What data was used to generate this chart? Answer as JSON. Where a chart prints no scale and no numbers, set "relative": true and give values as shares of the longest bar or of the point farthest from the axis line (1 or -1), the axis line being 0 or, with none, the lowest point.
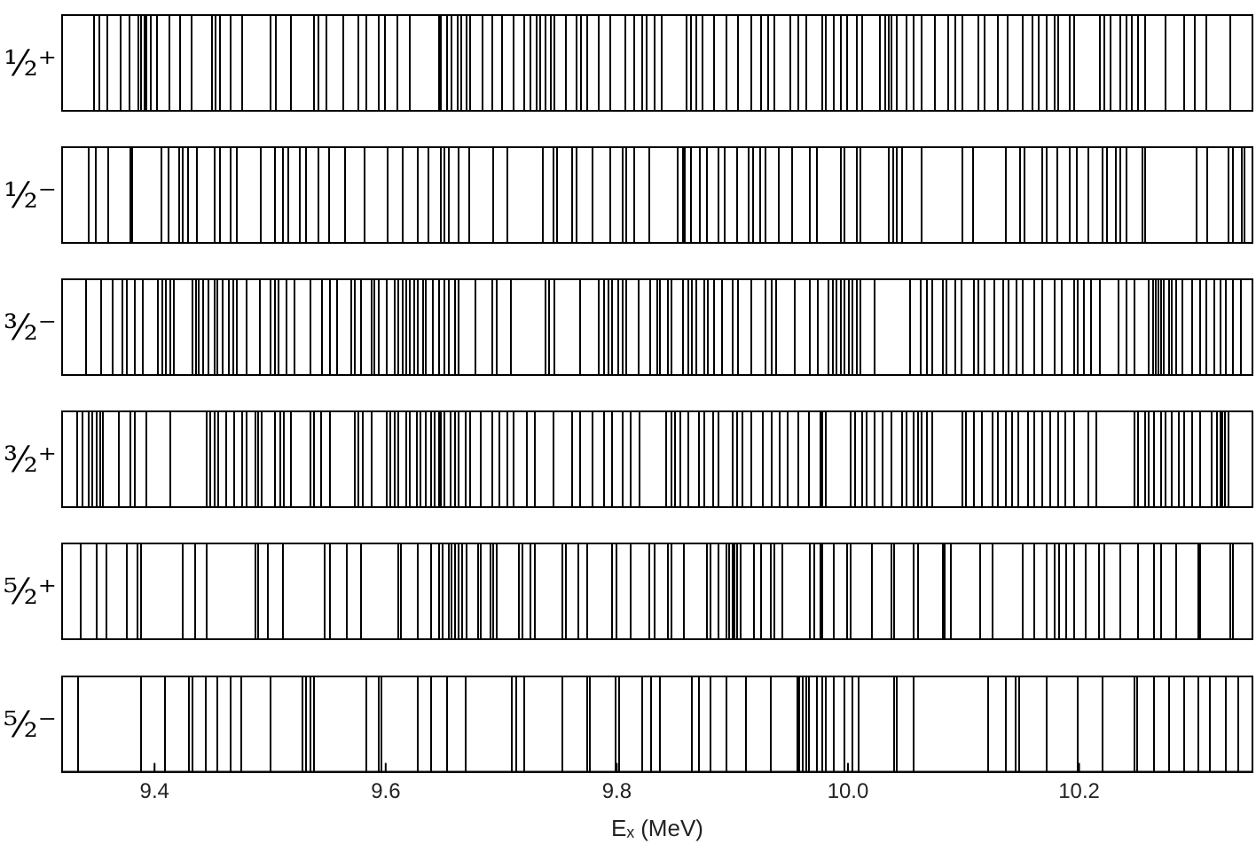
{
  "chart_data": [
    {
      "type": "bar",
      "ylabel": "¹⁄₂⁺",
      "color": "#000000",
      "relative": true,
      "xlim": [
        9.32,
        10.35
      ],
      "tick_labels": false,
      "x": [
        9.348,
        9.352,
        9.359,
        9.371,
        9.378,
        9.386,
        9.388,
        9.391,
        9.393,
        9.397,
        9.402,
        9.413,
        9.422,
        9.432,
        9.45,
        9.453,
        9.457,
        9.466,
        9.476,
        9.5,
        9.505,
        9.518,
        9.538,
        9.542,
        9.549,
        9.563,
        9.576,
        9.583,
        9.594,
        9.599,
        9.61,
        9.621,
        9.646,
        9.648,
        9.653,
        9.657,
        9.662,
        9.665,
        9.67,
        9.673,
        9.684,
        9.692,
        9.701,
        9.711,
        9.72,
        9.725,
        9.731,
        9.734,
        9.738,
        9.743,
        9.746,
        9.756,
        9.765,
        9.769,
        9.774,
        9.784,
        9.794,
        9.807,
        9.815,
        9.822,
        9.826,
        9.833,
        9.839,
        9.86,
        9.864,
        9.869,
        9.874,
        9.884,
        9.895,
        9.905,
        9.916,
        9.925,
        9.931,
        9.936,
        9.95,
        9.957,
        9.964,
        9.978,
        9.981,
        9.988,
        9.994,
        9.999,
        10.008,
        10.012,
        10.028,
        10.032,
        10.035,
        10.038,
        10.042,
        10.051,
        10.057,
        10.064,
        10.075,
        10.087,
        10.093,
        10.099,
        10.113,
        10.118,
        10.13,
        10.138,
        10.151,
        10.16,
        10.165,
        10.172,
        10.179,
        10.182,
        10.192,
        10.196,
        10.218,
        10.222,
        10.227,
        10.236,
        10.241,
        10.246,
        10.251,
        10.257,
        10.275,
        10.291,
        10.3,
        10.31,
        10.331
      ],
      "values": [
        1,
        1,
        1,
        1,
        1,
        1,
        1,
        1,
        1,
        1,
        1,
        1,
        1,
        1,
        1,
        1,
        1,
        1,
        1,
        1,
        1,
        1,
        1,
        1,
        1,
        1,
        1,
        1,
        1,
        1,
        1,
        1,
        1,
        1,
        1,
        1,
        1,
        1,
        1,
        1,
        1,
        1,
        1,
        1,
        1,
        1,
        1,
        1,
        1,
        1,
        1,
        1,
        1,
        1,
        1,
        1,
        1,
        1,
        1,
        1,
        1,
        1,
        1,
        1,
        1,
        1,
        1,
        1,
        1,
        1,
        1,
        1,
        1,
        1,
        1,
        1,
        1,
        1,
        1,
        1,
        1,
        1,
        1,
        1,
        1,
        1,
        1,
        1,
        1,
        1,
        1,
        1,
        1,
        1,
        1,
        1,
        1,
        1,
        1,
        1,
        1,
        1,
        1,
        1,
        1,
        1,
        1,
        1,
        1,
        1,
        1,
        1,
        1,
        1,
        1,
        1,
        1,
        1,
        1,
        1,
        1
      ]
    },
    {
      "type": "bar",
      "ylabel": "¹⁄₂⁻",
      "color": "#000000",
      "relative": true,
      "xlim": [
        9.32,
        10.35
      ],
      "tick_labels": false,
      "x": [
        9.343,
        9.349,
        9.36,
        9.379,
        9.381,
        9.406,
        9.412,
        9.421,
        9.424,
        9.429,
        9.437,
        9.452,
        9.457,
        9.466,
        9.471,
        9.492,
        9.504,
        9.511,
        9.516,
        9.526,
        9.531,
        9.542,
        9.551,
        9.565,
        9.582,
        9.602,
        9.615,
        9.628,
        9.637,
        9.648,
        9.651,
        9.655,
        9.663,
        9.672,
        9.693,
        9.705,
        9.736,
        9.745,
        9.748,
        9.761,
        9.765,
        9.779,
        9.794,
        9.805,
        9.808,
        9.815,
        9.828,
        9.853,
        9.857,
        9.859,
        9.864,
        9.872,
        9.878,
        9.888,
        9.893,
        9.904,
        9.914,
        9.918,
        9.924,
        9.929,
        9.94,
        9.952,
        9.967,
        9.973,
        9.994,
        9.997,
        10.008,
        10.011,
        10.035,
        10.039,
        10.042,
        10.047,
        10.064,
        10.099,
        10.108,
        10.137,
        10.149,
        10.153,
        10.168,
        10.172,
        10.181,
        10.192,
        10.198,
        10.208,
        10.22,
        10.224,
        10.232,
        10.236,
        10.241,
        10.255,
        10.257,
        10.302,
        10.311,
        10.329,
        10.333,
        10.341,
        10.343
      ],
      "values": [
        1,
        1,
        1,
        1,
        1,
        1,
        1,
        1,
        1,
        1,
        1,
        1,
        1,
        1,
        1,
        1,
        1,
        1,
        1,
        1,
        1,
        1,
        1,
        1,
        1,
        1,
        1,
        1,
        1,
        1,
        1,
        1,
        1,
        1,
        1,
        1,
        1,
        1,
        1,
        1,
        1,
        1,
        1,
        1,
        1,
        1,
        1,
        1,
        1,
        1,
        1,
        1,
        1,
        1,
        1,
        1,
        1,
        1,
        1,
        1,
        1,
        1,
        1,
        1,
        1,
        1,
        1,
        1,
        1,
        1,
        1,
        1,
        1,
        1,
        1,
        1,
        1,
        1,
        1,
        1,
        1,
        1,
        1,
        1,
        1,
        1,
        1,
        1,
        1,
        1,
        1,
        1,
        1,
        1,
        1,
        1,
        1
      ]
    },
    {
      "type": "bar",
      "ylabel": "³⁄₂⁻",
      "color": "#000000",
      "relative": true,
      "xlim": [
        9.32,
        10.35
      ],
      "tick_labels": false,
      "x": [
        9.341,
        9.354,
        9.364,
        9.372,
        9.376,
        9.383,
        9.39,
        9.403,
        9.407,
        9.41,
        9.414,
        9.417,
        9.433,
        9.436,
        9.438,
        9.442,
        9.447,
        9.452,
        9.454,
        9.459,
        9.464,
        9.468,
        9.471,
        9.48,
        9.491,
        9.5,
        9.504,
        9.507,
        9.514,
        9.521,
        9.535,
        9.545,
        9.552,
        9.558,
        9.57,
        9.573,
        9.579,
        9.588,
        9.59,
        9.594,
        9.601,
        9.608,
        9.611,
        9.615,
        9.618,
        9.621,
        9.625,
        9.628,
        9.632,
        9.635,
        9.641,
        9.646,
        9.651,
        9.655,
        9.66,
        9.663,
        9.678,
        9.692,
        9.696,
        9.708,
        9.738,
        9.741,
        9.746,
        9.768,
        9.784,
        9.789,
        9.793,
        9.796,
        9.801,
        9.805,
        9.808,
        9.819,
        9.829,
        9.835,
        9.837,
        9.844,
        9.847,
        9.857,
        9.862,
        9.865,
        9.869,
        9.876,
        9.879,
        9.884,
        9.891,
        9.9,
        9.905,
        9.916,
        9.929,
        9.934,
        9.938,
        9.954,
        9.967,
        9.974,
        9.983,
        9.987,
        9.99,
        9.994,
        9.997,
        10.001,
        10.004,
        10.008,
        10.011,
        10.023,
        10.054,
        10.063,
        10.068,
        10.073,
        10.082,
        10.085,
        10.093,
        10.098,
        10.109,
        10.113,
        10.118,
        10.127,
        10.134,
        10.139,
        10.146,
        10.151,
        10.161,
        10.168,
        10.179,
        10.185,
        10.196,
        10.199,
        10.204,
        10.21,
        10.218,
        10.234,
        10.241,
        10.248,
        10.26,
        10.264,
        10.266,
        10.269,
        10.271,
        10.273,
        10.278,
        10.28,
        10.284,
        10.289,
        10.298,
        10.305,
        10.31,
        10.317,
        10.322,
        10.327,
        10.333,
        10.34
      ],
      "values": [
        1,
        1,
        1,
        1,
        1,
        1,
        1,
        1,
        1,
        1,
        1,
        1,
        1,
        1,
        1,
        1,
        1,
        1,
        1,
        1,
        1,
        1,
        1,
        1,
        1,
        1,
        1,
        1,
        1,
        1,
        1,
        1,
        1,
        1,
        1,
        1,
        1,
        1,
        1,
        1,
        1,
        1,
        1,
        1,
        1,
        1,
        1,
        1,
        1,
        1,
        1,
        1,
        1,
        1,
        1,
        1,
        1,
        1,
        1,
        1,
        1,
        1,
        1,
        1,
        1,
        1,
        1,
        1,
        1,
        1,
        1,
        1,
        1,
        1,
        1,
        1,
        1,
        1,
        1,
        1,
        1,
        1,
        1,
        1,
        1,
        1,
        1,
        1,
        1,
        1,
        1,
        1,
        1,
        1,
        1,
        1,
        1,
        1,
        1,
        1,
        1,
        1,
        1,
        1,
        1,
        1,
        1,
        1,
        1,
        1,
        1,
        1,
        1,
        1,
        1,
        1,
        1,
        1,
        1,
        1,
        1,
        1,
        1,
        1,
        1,
        1,
        1,
        1,
        1,
        1,
        1,
        1,
        1,
        1,
        1,
        1,
        1,
        1,
        1,
        1,
        1,
        1,
        1,
        1,
        1,
        1,
        1,
        1,
        1,
        1
      ]
    },
    {
      "type": "bar",
      "ylabel": "³⁄₂⁺",
      "color": "#000000",
      "relative": true,
      "xlim": [
        9.32,
        10.35
      ],
      "tick_labels": false,
      "x": [
        9.333,
        9.338,
        9.343,
        9.346,
        9.35,
        9.353,
        9.355,
        9.369,
        9.379,
        9.383,
        9.393,
        9.414,
        9.445,
        9.448,
        9.452,
        9.455,
        9.462,
        9.469,
        9.476,
        9.48,
        9.487,
        9.49,
        9.493,
        9.504,
        9.509,
        9.512,
        9.518,
        9.535,
        9.538,
        9.544,
        9.552,
        9.573,
        9.576,
        9.58,
        9.588,
        9.601,
        9.604,
        9.608,
        9.611,
        9.618,
        9.621,
        9.627,
        9.63,
        9.635,
        9.639,
        9.642,
        9.646,
        9.648,
        9.651,
        9.656,
        9.66,
        9.663,
        9.669,
        9.673,
        9.682,
        9.692,
        9.698,
        9.705,
        9.711,
        9.722,
        9.729,
        9.745,
        9.761,
        9.768,
        9.779,
        9.789,
        9.796,
        9.805,
        9.812,
        9.82,
        9.843,
        9.847,
        9.85,
        9.855,
        9.862,
        9.871,
        9.876,
        9.883,
        9.888,
        9.9,
        9.904,
        9.909,
        9.916,
        9.926,
        9.934,
        9.941,
        9.948,
        9.957,
        9.966,
        9.976,
        9.978,
        9.981,
        10.002,
        10.006,
        10.012,
        10.016,
        10.023,
        10.03,
        10.038,
        10.047,
        10.051,
        10.057,
        10.061,
        10.064,
        10.068,
        10.073,
        10.099,
        10.102,
        10.109,
        10.116,
        10.125,
        10.13,
        10.137,
        10.142,
        10.147,
        10.156,
        10.161,
        10.168,
        10.175,
        10.182,
        10.188,
        10.196,
        10.208,
        10.215,
        10.248,
        10.251,
        10.257,
        10.26,
        10.265,
        10.271,
        10.275,
        10.28,
        10.286,
        10.291,
        10.298,
        10.305,
        10.315,
        10.319,
        10.322,
        10.324,
        10.326,
        10.329
      ],
      "values": [
        1,
        1,
        1,
        1,
        1,
        1,
        1,
        1,
        1,
        1,
        1,
        1,
        1,
        1,
        1,
        1,
        1,
        1,
        1,
        1,
        1,
        1,
        1,
        1,
        1,
        1,
        1,
        1,
        1,
        1,
        1,
        1,
        1,
        1,
        1,
        1,
        1,
        1,
        1,
        1,
        1,
        1,
        1,
        1,
        1,
        1,
        1,
        1,
        1,
        1,
        1,
        1,
        1,
        1,
        1,
        1,
        1,
        1,
        1,
        1,
        1,
        1,
        1,
        1,
        1,
        1,
        1,
        1,
        1,
        1,
        1,
        1,
        1,
        1,
        1,
        1,
        1,
        1,
        1,
        1,
        1,
        1,
        1,
        1,
        1,
        1,
        1,
        1,
        1,
        1,
        1,
        1,
        1,
        1,
        1,
        1,
        1,
        1,
        1,
        1,
        1,
        1,
        1,
        1,
        1,
        1,
        1,
        1,
        1,
        1,
        1,
        1,
        1,
        1,
        1,
        1,
        1,
        1,
        1,
        1,
        1,
        1,
        1,
        1,
        1,
        1,
        1,
        1,
        1,
        1,
        1,
        1,
        1,
        1,
        1,
        1,
        1,
        1,
        1,
        1,
        1,
        1
      ]
    },
    {
      "type": "bar",
      "ylabel": "⁵⁄₂⁺",
      "color": "#000000",
      "relative": true,
      "xlim": [
        9.32,
        10.35
      ],
      "tick_labels": false,
      "x": [
        9.336,
        9.35,
        9.358,
        9.376,
        9.385,
        9.388,
        9.424,
        9.435,
        9.445,
        9.487,
        9.49,
        9.498,
        9.511,
        9.547,
        9.552,
        9.566,
        9.579,
        9.611,
        9.613,
        9.628,
        9.639,
        9.646,
        9.649,
        9.655,
        9.657,
        9.66,
        9.663,
        9.666,
        9.67,
        9.68,
        9.682,
        9.691,
        9.693,
        9.696,
        9.715,
        9.718,
        9.725,
        9.729,
        9.753,
        9.756,
        9.767,
        9.774,
        9.796,
        9.8,
        9.812,
        9.828,
        9.833,
        9.844,
        9.847,
        9.858,
        9.878,
        9.881,
        9.888,
        9.895,
        9.897,
        9.9,
        9.902,
        9.904,
        9.907,
        9.919,
        9.925,
        9.933,
        9.936,
        9.943,
        9.967,
        9.971,
        9.976,
        9.978,
        9.988,
        9.999,
        10.002,
        10.021,
        10.038,
        10.04,
        10.057,
        10.061,
        10.082,
        10.084,
        10.089,
        10.114,
        10.125,
        10.151,
        10.161,
        10.172,
        10.179,
        10.183,
        10.189,
        10.196,
        10.206,
        10.217,
        10.222,
        10.236,
        10.251,
        10.265,
        10.271,
        10.284,
        10.303,
        10.305,
        10.331,
        10.333
      ],
      "values": [
        1,
        1,
        1,
        1,
        1,
        1,
        1,
        1,
        1,
        1,
        1,
        1,
        1,
        1,
        1,
        1,
        1,
        1,
        1,
        1,
        1,
        1,
        1,
        1,
        1,
        1,
        1,
        1,
        1,
        1,
        1,
        1,
        1,
        1,
        1,
        1,
        1,
        1,
        1,
        1,
        1,
        1,
        1,
        1,
        1,
        1,
        1,
        1,
        1,
        1,
        1,
        1,
        1,
        1,
        1,
        1,
        1,
        1,
        1,
        1,
        1,
        1,
        1,
        1,
        1,
        1,
        1,
        1,
        1,
        1,
        1,
        1,
        1,
        1,
        1,
        1,
        1,
        1,
        1,
        1,
        1,
        1,
        1,
        1,
        1,
        1,
        1,
        1,
        1,
        1,
        1,
        1,
        1,
        1,
        1,
        1,
        1,
        1,
        1,
        1
      ]
    },
    {
      "type": "bar",
      "ylabel": "⁵⁄₂⁻",
      "xlabel": "Eₓ (MeV)",
      "color": "#000000",
      "relative": true,
      "xlim": [
        9.32,
        10.35
      ],
      "xticks": [
        9.4,
        9.6,
        9.8,
        {
          "value": 10,
          "label": "10.0"
        },
        10.2
      ],
      "tick_labels": "x",
      "x": [
        9.334,
        9.388,
        9.409,
        9.43,
        9.433,
        9.444,
        9.454,
        9.466,
        9.475,
        9.5,
        9.528,
        9.531,
        9.535,
        9.538,
        9.583,
        9.594,
        9.596,
        9.628,
        9.639,
        9.653,
        9.669,
        9.709,
        9.713,
        9.72,
        9.753,
        9.774,
        9.777,
        9.799,
        9.802,
        9.822,
        9.83,
        9.837,
        9.865,
        9.871,
        9.881,
        9.895,
        9.912,
        9.933,
        9.956,
        9.958,
        9.961,
        9.964,
        9.966,
        9.973,
        9.978,
        9.981,
        9.988,
        9.997,
        10.004,
        10.009,
        10.04,
        10.042,
        10.057,
        10.121,
        10.137,
        10.145,
        10.148,
        10.172,
        10.199,
        10.22,
        10.248,
        10.25,
        10.265,
        10.278,
        10.291,
        10.303,
        10.313,
        10.327,
        10.338
      ],
      "values": [
        1,
        1,
        1,
        1,
        1,
        1,
        1,
        1,
        1,
        1,
        1,
        1,
        1,
        1,
        1,
        1,
        1,
        1,
        1,
        1,
        1,
        1,
        1,
        1,
        1,
        1,
        1,
        1,
        1,
        1,
        1,
        1,
        1,
        1,
        1,
        1,
        1,
        1,
        1,
        1,
        1,
        1,
        1,
        1,
        1,
        1,
        1,
        1,
        1,
        1,
        1,
        1,
        1,
        1,
        1,
        1,
        1,
        1,
        1,
        1,
        1,
        1,
        1,
        1,
        1,
        1,
        1,
        1,
        1
      ]
    }
  ]
}
